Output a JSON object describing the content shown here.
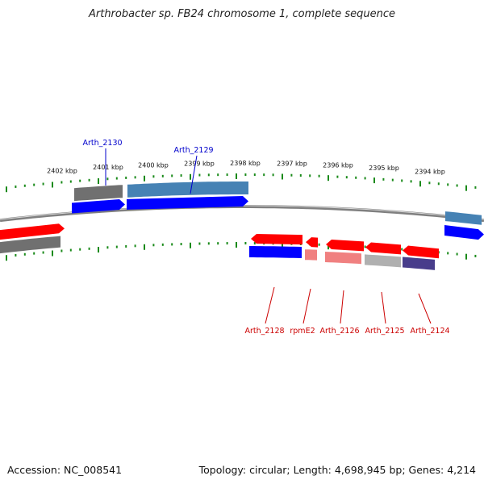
{
  "title": "Arthrobacter sp. FB24 chromosome 1, complete sequence",
  "footer": {
    "accession": "Accession: NC_008541",
    "topology": "Topology: circular; Length: 4,698,945 bp; Genes: 4,214"
  },
  "colors": {
    "ruler_green": "#1a8a1a",
    "backbone_gray": "#808080",
    "forward_label": "#0000cc",
    "reverse_label": "#cc0000",
    "cds_forward": "#0000ff",
    "cds_reverse": "#ff0000",
    "gene_gray": "#707070",
    "gene_steelblue": "#4682b4",
    "gene_pink": "#f08080",
    "gene_silver": "#b0b0b0",
    "gene_navy": "#483d8b"
  },
  "ruler_kbp": [
    "2402 kbp",
    "2401 kbp",
    "2400 kbp",
    "2399 kbp",
    "2398 kbp",
    "2397 kbp",
    "2396 kbp",
    "2395 kbp",
    "2394 kbp"
  ],
  "genes_forward": [
    {
      "name": "Arth_2130"
    },
    {
      "name": "Arth_2129"
    }
  ],
  "genes_reverse": [
    {
      "name": "Arth_2128"
    },
    {
      "name": "rpmE2"
    },
    {
      "name": "Arth_2126"
    },
    {
      "name": "Arth_2125"
    },
    {
      "name": "Arth_2124"
    }
  ]
}
